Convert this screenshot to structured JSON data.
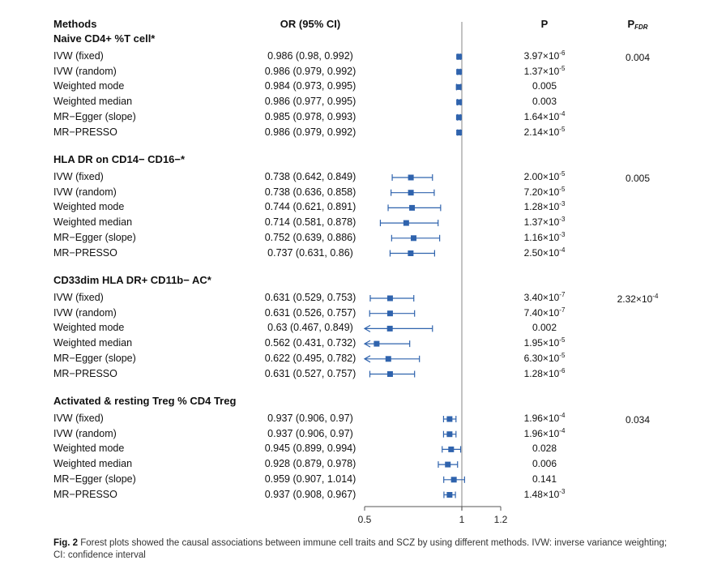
{
  "header": {
    "methods": "Methods",
    "or": "OR (95% CI)",
    "p": "P",
    "pfdr_main": "P",
    "pfdr_sub": "FDR"
  },
  "chart_data": {
    "type": "forest",
    "x_reference": 1,
    "x_ticks": [
      "0.5",
      "1",
      "1.2"
    ],
    "x_tick_values": [
      0.5,
      1,
      1.2
    ],
    "xlim": [
      0.5,
      1.2
    ],
    "groups": [
      {
        "title": "Naive CD4+ %T cell*",
        "pfdr": "0.004",
        "rows": [
          {
            "method": "IVW (fixed)",
            "or_text": "0.986 (0.98, 0.992)",
            "or": 0.986,
            "lo": 0.98,
            "hi": 0.992,
            "p_base": "3.97×10",
            "p_exp": "-6"
          },
          {
            "method": "IVW (random)",
            "or_text": "0.986 (0.979, 0.992)",
            "or": 0.986,
            "lo": 0.979,
            "hi": 0.992,
            "p_base": "1.37×10",
            "p_exp": "-5"
          },
          {
            "method": "Weighted mode",
            "or_text": "0.984 (0.973, 0.995)",
            "or": 0.984,
            "lo": 0.973,
            "hi": 0.995,
            "p_base": "0.005",
            "p_exp": ""
          },
          {
            "method": "Weighted median",
            "or_text": "0.986 (0.977, 0.995)",
            "or": 0.986,
            "lo": 0.977,
            "hi": 0.995,
            "p_base": "0.003",
            "p_exp": ""
          },
          {
            "method": "MR−Egger (slope)",
            "or_text": "0.985 (0.978, 0.993)",
            "or": 0.985,
            "lo": 0.978,
            "hi": 0.993,
            "p_base": "1.64×10",
            "p_exp": "-4"
          },
          {
            "method": "MR−PRESSO",
            "or_text": "0.986 (0.979, 0.992)",
            "or": 0.986,
            "lo": 0.979,
            "hi": 0.992,
            "p_base": "2.14×10",
            "p_exp": "-5"
          }
        ]
      },
      {
        "title": "HLA DR on CD14− CD16−*",
        "pfdr": "0.005",
        "rows": [
          {
            "method": "IVW (fixed)",
            "or_text": "0.738 (0.642, 0.849)",
            "or": 0.738,
            "lo": 0.642,
            "hi": 0.849,
            "p_base": "2.00×10",
            "p_exp": "-5"
          },
          {
            "method": "IVW (random)",
            "or_text": "0.738 (0.636, 0.858)",
            "or": 0.738,
            "lo": 0.636,
            "hi": 0.858,
            "p_base": "7.20×10",
            "p_exp": "-5"
          },
          {
            "method": "Weighted mode",
            "or_text": "0.744 (0.621, 0.891)",
            "or": 0.744,
            "lo": 0.621,
            "hi": 0.891,
            "p_base": "1.28×10",
            "p_exp": "-3"
          },
          {
            "method": "Weighted median",
            "or_text": "0.714 (0.581, 0.878)",
            "or": 0.714,
            "lo": 0.581,
            "hi": 0.878,
            "p_base": "1.37×10",
            "p_exp": "-3"
          },
          {
            "method": "MR−Egger (slope)",
            "or_text": "0.752 (0.639, 0.886)",
            "or": 0.752,
            "lo": 0.639,
            "hi": 0.886,
            "p_base": "1.16×10",
            "p_exp": "-3"
          },
          {
            "method": "MR−PRESSO",
            "or_text": "0.737 (0.631, 0.86)",
            "or": 0.737,
            "lo": 0.631,
            "hi": 0.86,
            "p_base": "2.50×10",
            "p_exp": "-4"
          }
        ]
      },
      {
        "title": "CD33dim HLA DR+ CD11b− AC*",
        "pfdr": "2.32×10",
        "pfdr_exp": "-4",
        "rows": [
          {
            "method": "IVW (fixed)",
            "or_text": "0.631 (0.529, 0.753)",
            "or": 0.631,
            "lo": 0.529,
            "hi": 0.753,
            "p_base": "3.40×10",
            "p_exp": "-7"
          },
          {
            "method": "IVW (random)",
            "or_text": "0.631 (0.526, 0.757)",
            "or": 0.631,
            "lo": 0.526,
            "hi": 0.757,
            "p_base": "7.40×10",
            "p_exp": "-7"
          },
          {
            "method": "Weighted mode",
            "or_text": "0.63 (0.467, 0.849)",
            "or": 0.63,
            "lo": 0.467,
            "hi": 0.849,
            "p_base": "0.002",
            "p_exp": ""
          },
          {
            "method": "Weighted median",
            "or_text": "0.562 (0.431, 0.732)",
            "or": 0.562,
            "lo": 0.431,
            "hi": 0.732,
            "p_base": "1.95×10",
            "p_exp": "-5"
          },
          {
            "method": "MR−Egger (slope)",
            "or_text": "0.622 (0.495, 0.782)",
            "or": 0.622,
            "lo": 0.495,
            "hi": 0.782,
            "p_base": "6.30×10",
            "p_exp": "-5"
          },
          {
            "method": "MR−PRESSO",
            "or_text": "0.631 (0.527, 0.757)",
            "or": 0.631,
            "lo": 0.527,
            "hi": 0.757,
            "p_base": "1.28×10",
            "p_exp": "-6"
          }
        ]
      },
      {
        "title": "Activated & resting Treg % CD4 Treg",
        "pfdr": "0.034",
        "rows": [
          {
            "method": "IVW (fixed)",
            "or_text": "0.937 (0.906, 0.97)",
            "or": 0.937,
            "lo": 0.906,
            "hi": 0.97,
            "p_base": "1.96×10",
            "p_exp": "-4"
          },
          {
            "method": "IVW (random)",
            "or_text": "0.937 (0.906, 0.97)",
            "or": 0.937,
            "lo": 0.906,
            "hi": 0.97,
            "p_base": "1.96×10",
            "p_exp": "-4"
          },
          {
            "method": "Weighted mode",
            "or_text": "0.945 (0.899, 0.994)",
            "or": 0.945,
            "lo": 0.899,
            "hi": 0.994,
            "p_base": "0.028",
            "p_exp": ""
          },
          {
            "method": "Weighted median",
            "or_text": "0.928 (0.879, 0.978)",
            "or": 0.928,
            "lo": 0.879,
            "hi": 0.978,
            "p_base": "0.006",
            "p_exp": ""
          },
          {
            "method": "MR−Egger (slope)",
            "or_text": "0.959 (0.907, 1.014)",
            "or": 0.959,
            "lo": 0.907,
            "hi": 1.014,
            "p_base": "0.141",
            "p_exp": ""
          },
          {
            "method": "MR−PRESSO",
            "or_text": "0.937 (0.908, 0.967)",
            "or": 0.937,
            "lo": 0.908,
            "hi": 0.967,
            "p_base": "1.48×10",
            "p_exp": "-3"
          }
        ]
      }
    ]
  },
  "caption": {
    "label": "Fig. 2",
    "text": " Forest plots showed the causal associations between immune cell traits and SCZ by using different methods. IVW: inverse variance weighting; CI: confidence interval"
  },
  "colors": {
    "marker": "#2f63ad",
    "axis": "#555555",
    "refline": "#9a9a9a"
  }
}
